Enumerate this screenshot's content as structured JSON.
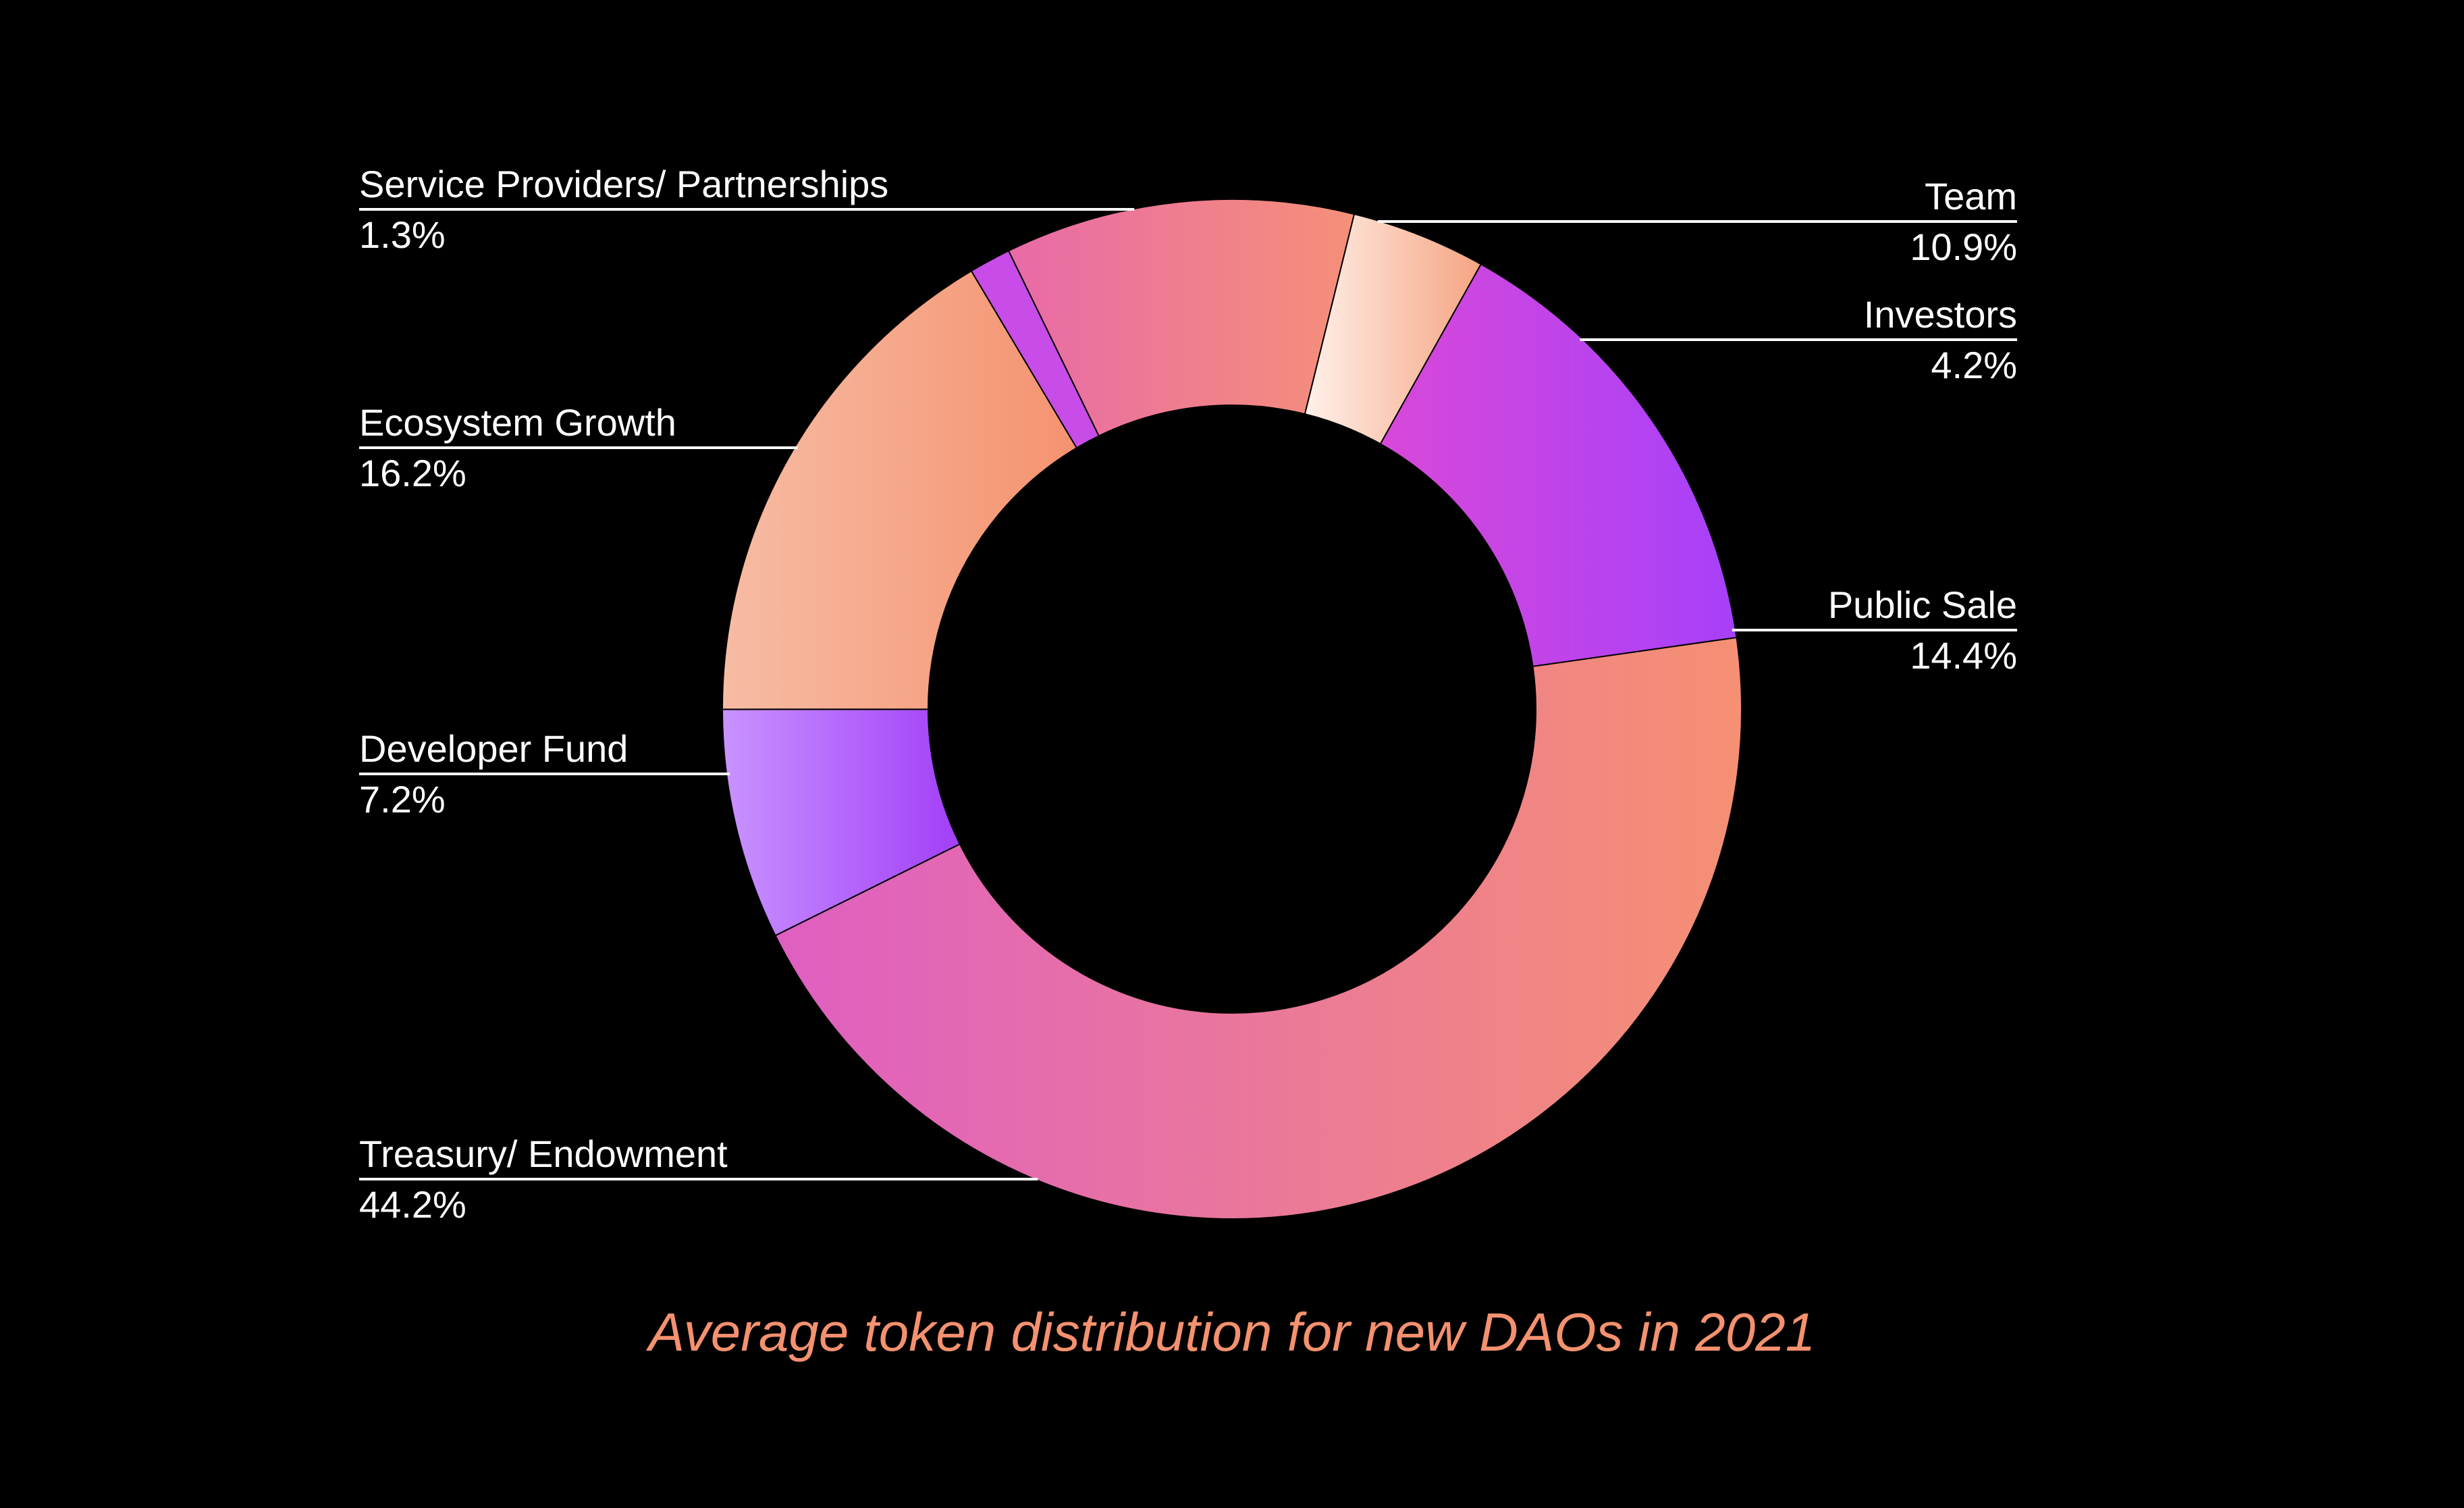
{
  "chart_data": {
    "type": "pie",
    "variant": "donut",
    "title": "Average token distribution for new DAOs in 2021",
    "start_order": "clockwise from Team",
    "slices": [
      {
        "label": "Team",
        "value_label": "10.9%",
        "value": 10.9,
        "side": "right",
        "gradient": [
          "#e86aa8",
          "#f59078"
        ]
      },
      {
        "label": "Investors",
        "value_label": "4.2%",
        "value": 4.2,
        "side": "right",
        "gradient": [
          "#fff1ea",
          "#f5a482"
        ]
      },
      {
        "label": "Public Sale",
        "value_label": "14.4%",
        "value": 14.4,
        "side": "right",
        "gradient": [
          "#d948d9",
          "#a640fa"
        ]
      },
      {
        "label": "Treasury/ Endowment",
        "value_label": "44.2%",
        "value": 44.2,
        "side": "left",
        "gradient": [
          "#df5fc2",
          "#f59073"
        ]
      },
      {
        "label": "Developer Fund",
        "value_label": "7.2%",
        "value": 7.2,
        "side": "left",
        "gradient": [
          "#c993ff",
          "#a23ff8"
        ]
      },
      {
        "label": "Ecosystem Growth",
        "value_label": "16.2%",
        "value": 16.2,
        "side": "left",
        "gradient": [
          "#f6bca4",
          "#f5926f"
        ]
      },
      {
        "label": "Service Providers/ Partnerships",
        "value_label": "1.3%",
        "value": 1.3,
        "side": "left",
        "gradient": [
          "#c84ce8",
          "#c84ce8"
        ]
      }
    ],
    "colors": {
      "background": "#000000",
      "text": "#ffffff",
      "leader_line": "#ffffff",
      "title": "#f4916f"
    }
  }
}
